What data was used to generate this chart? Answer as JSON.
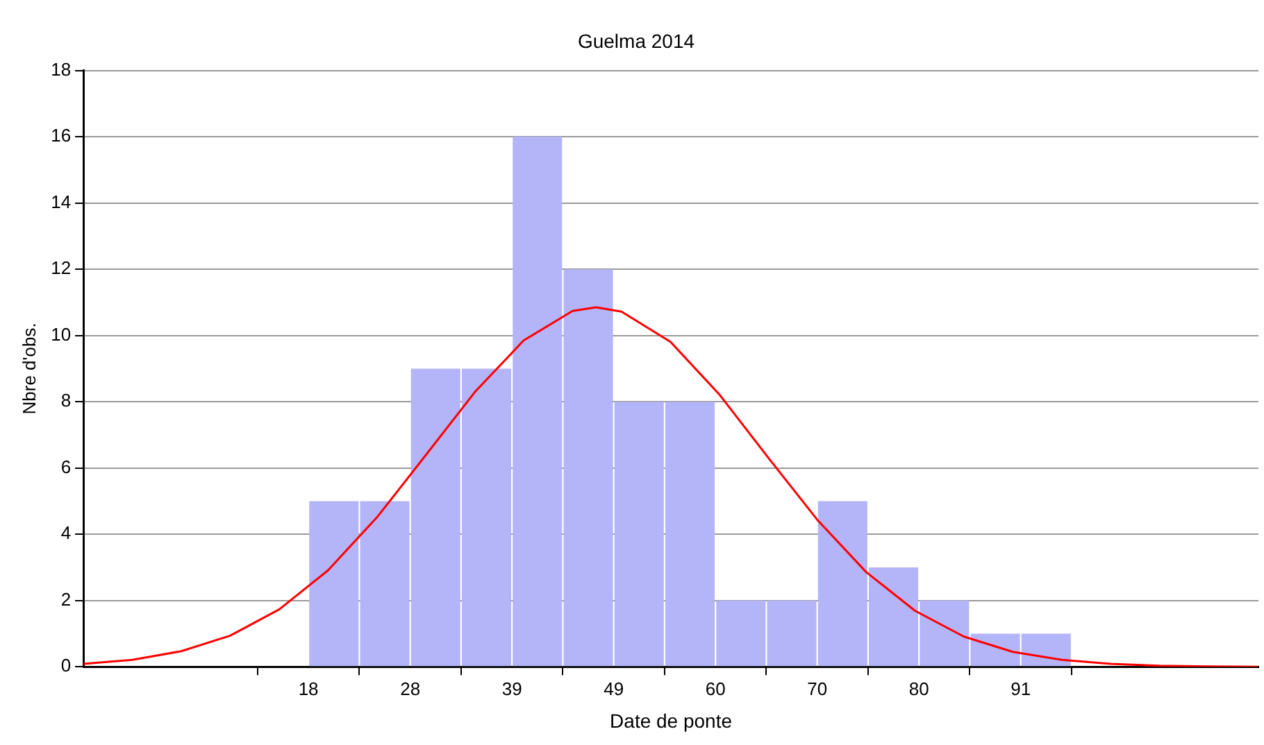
{
  "chart_data": {
    "type": "histogram",
    "title": "Guelma 2014",
    "xlabel": "Date de ponte",
    "ylabel": "Nbre d'obs.",
    "bins": [
      18,
      23.2,
      28.4,
      33.6,
      38.8,
      44,
      49.2,
      54.4,
      59.6,
      64.8,
      70,
      75.2,
      80.4,
      85.6,
      90.8,
      96
    ],
    "values": [
      5,
      5,
      9,
      9,
      16,
      12,
      8,
      8,
      2,
      2,
      5,
      3,
      2,
      1,
      1
    ],
    "color": "#b4b4f8",
    "series": [
      {
        "type": "line",
        "color": "#ff0000",
        "marker": "none",
        "x": [
          -5,
          0,
          5,
          10,
          15,
          20,
          25,
          30,
          35,
          40,
          45,
          47.4,
          50,
          55,
          60,
          65,
          70,
          75,
          80,
          85,
          90,
          95,
          100,
          105,
          110,
          115
        ],
        "values": [
          0.09,
          0.21,
          0.47,
          0.94,
          1.73,
          2.91,
          4.51,
          6.39,
          8.29,
          9.85,
          10.74,
          10.85,
          10.72,
          9.81,
          8.22,
          6.31,
          4.44,
          2.86,
          1.69,
          0.91,
          0.45,
          0.21,
          0.09,
          0.03,
          0.01,
          0
        ]
      }
    ],
    "xlim": [
      -5,
      115.1
    ],
    "xticks": [
      {
        "value": 18,
        "label": "18"
      },
      {
        "value": 28.4,
        "label": "28"
      },
      {
        "value": 38.8,
        "label": "39"
      },
      {
        "value": 49.2,
        "label": "49"
      },
      {
        "value": 59.6,
        "label": "60"
      },
      {
        "value": 70,
        "label": "70"
      },
      {
        "value": 80.4,
        "label": "80"
      },
      {
        "value": 90.8,
        "label": "91"
      }
    ],
    "ylim": [
      0,
      18
    ],
    "yticks": [
      0,
      2,
      4,
      6,
      8,
      10,
      12,
      14,
      16,
      18
    ],
    "grid": "y",
    "legend": false
  }
}
